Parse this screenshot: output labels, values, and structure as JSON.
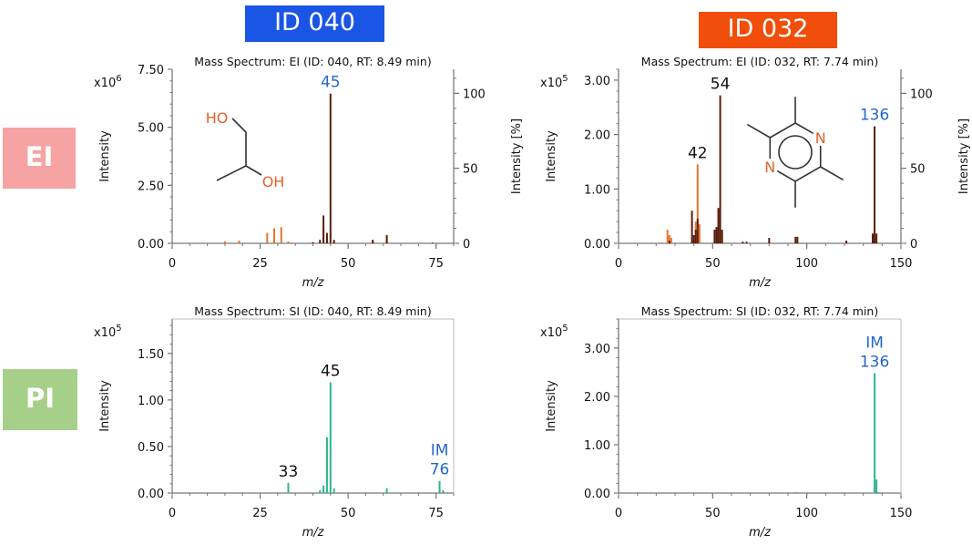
{
  "colors": {
    "id040_box": "#1a55e6",
    "id032_box": "#f04e0a",
    "ei_box": "#f5a3a3",
    "pi_box": "#a6d089",
    "ei_peak": "#5a1e0c",
    "ei_peak_alt": "#e8742f",
    "si_peak": "#2cb88a",
    "label_blue": "#2468c8",
    "label_black": "#111111",
    "structure_orange": "#e0622a"
  },
  "header": {
    "id_040": "ID 040",
    "id_032": "ID 032"
  },
  "rows": {
    "ei": "EI",
    "pi": "PI"
  },
  "chart_data": [
    {
      "type": "bar",
      "title": "Mass Spectrum: EI (ID: 040, RT: 8.49 min)",
      "xlabel": "m/z",
      "ylabel": "Intensity",
      "y2label": "Intensity [%]",
      "multiplier": "x10",
      "multiplier_exp": "6",
      "xlim": [
        0,
        80
      ],
      "xticks": [
        0,
        25,
        50,
        75
      ],
      "xtick_labels": [
        "0",
        "25",
        "50",
        "75"
      ],
      "ylim": [
        0,
        7.5
      ],
      "yticks": [
        0,
        2.5,
        5,
        7.5
      ],
      "ytick_labels": [
        "0.00",
        "2.50",
        "5.00",
        "7.50"
      ],
      "y2ticks": [
        0,
        50,
        100
      ],
      "y2tick_labels": [
        "0",
        "50",
        "100"
      ],
      "y2max": 116,
      "series": [
        {
          "role": "ei",
          "x": [
            40,
            42,
            43,
            44,
            45,
            46,
            57,
            61,
            74
          ],
          "y": [
            0.05,
            0.15,
            1.2,
            0.45,
            6.45,
            0.15,
            0.15,
            0.35,
            0.03
          ]
        },
        {
          "role": "ei-alt",
          "x": [
            15,
            19,
            27,
            29,
            31,
            33,
            43,
            44,
            57,
            61
          ],
          "y": [
            0.08,
            0.12,
            0.45,
            0.65,
            0.7,
            0.08,
            0.7,
            0.3,
            0.15,
            0.35
          ]
        }
      ],
      "annotations": [
        {
          "text": "45",
          "x": 45,
          "y": 6.45,
          "color": "label_blue"
        }
      ],
      "structure": {
        "labels": [
          "HO",
          "OH"
        ]
      }
    },
    {
      "type": "bar",
      "title": "Mass Spectrum: EI (ID: 032, RT: 7.74 min)",
      "xlabel": "m/z",
      "ylabel": "Intensity",
      "y2label": "Intensity [%]",
      "multiplier": "x10",
      "multiplier_exp": "5",
      "xlim": [
        0,
        150
      ],
      "xticks": [
        0,
        50,
        100,
        150
      ],
      "xtick_labels": [
        "0",
        "50",
        "100",
        "150"
      ],
      "ylim": [
        0,
        3.2
      ],
      "yticks": [
        0,
        1,
        2,
        3
      ],
      "ytick_labels": [
        "0.00",
        "1.00",
        "2.00",
        "3.00"
      ],
      "y2ticks": [
        0,
        50,
        100
      ],
      "y2tick_labels": [
        "0",
        "50",
        "100"
      ],
      "y2max": 116,
      "series": [
        {
          "role": "ei",
          "x": [
            27,
            39,
            40,
            41,
            42,
            51,
            52,
            53,
            54,
            55,
            66,
            68,
            80,
            94,
            95,
            121,
            135,
            136,
            137
          ],
          "y": [
            0.05,
            0.6,
            0.15,
            0.25,
            0.45,
            0.25,
            0.3,
            0.65,
            2.72,
            0.25,
            0.03,
            0.03,
            0.1,
            0.12,
            0.12,
            0.05,
            0.18,
            2.15,
            0.18
          ]
        },
        {
          "role": "ei-alt",
          "x": [
            26,
            27,
            28,
            41,
            42,
            43
          ],
          "y": [
            0.25,
            0.15,
            0.1,
            0.4,
            1.45,
            0.35
          ]
        }
      ],
      "annotations": [
        {
          "text": "54",
          "x": 54,
          "y": 2.72,
          "color": "label_black"
        },
        {
          "text": "42",
          "x": 42,
          "y": 1.45,
          "color": "label_black"
        },
        {
          "text": "136",
          "x": 136,
          "y": 2.15,
          "color": "label_blue"
        }
      ],
      "structure": {
        "labels": [
          "N",
          "N"
        ]
      }
    },
    {
      "type": "bar",
      "title": "Mass Spectrum: SI (ID: 040, RT: 8.49 min)",
      "xlabel": "m/z",
      "ylabel": "Intensity",
      "multiplier": "x10",
      "multiplier_exp": "5",
      "xlim": [
        0,
        80
      ],
      "xticks": [
        0,
        25,
        50,
        75
      ],
      "xtick_labels": [
        "0",
        "25",
        "50",
        "75"
      ],
      "ylim": [
        0,
        1.87
      ],
      "yticks": [
        0,
        0.5,
        1,
        1.5
      ],
      "ytick_labels": [
        "0.00",
        "0.50",
        "1.00",
        "1.50"
      ],
      "series": [
        {
          "role": "si",
          "x": [
            33,
            42,
            43,
            44,
            45,
            46,
            61,
            76,
            77
          ],
          "y": [
            0.11,
            0.03,
            0.08,
            0.6,
            1.19,
            0.05,
            0.05,
            0.13,
            0.03
          ]
        }
      ],
      "annotations": [
        {
          "text": "45",
          "x": 45,
          "y": 1.19,
          "color": "label_black"
        },
        {
          "text": "33",
          "x": 33,
          "y": 0.11,
          "color": "label_black"
        },
        {
          "text": "IM",
          "text2": "76",
          "x": 76,
          "y": 0.13,
          "color": "label_blue"
        }
      ]
    },
    {
      "type": "bar",
      "title": "Mass Spectrum: SI (ID: 032, RT: 7.74 min)",
      "xlabel": "m/z",
      "ylabel": "Intensity",
      "multiplier": "x10",
      "multiplier_exp": "5",
      "xlim": [
        0,
        150
      ],
      "xticks": [
        0,
        50,
        100,
        150
      ],
      "xtick_labels": [
        "0",
        "50",
        "100",
        "150"
      ],
      "ylim": [
        0,
        3.6
      ],
      "yticks": [
        0,
        1,
        2,
        3
      ],
      "ytick_labels": [
        "0.00",
        "1.00",
        "2.00",
        "3.00"
      ],
      "series": [
        {
          "role": "si",
          "x": [
            94,
            136,
            137,
            138
          ],
          "y": [
            0.02,
            2.48,
            0.28,
            0.02
          ]
        }
      ],
      "annotations": [
        {
          "text": "IM",
          "text2": "136",
          "x": 136,
          "y": 2.48,
          "color": "label_blue"
        }
      ]
    }
  ]
}
